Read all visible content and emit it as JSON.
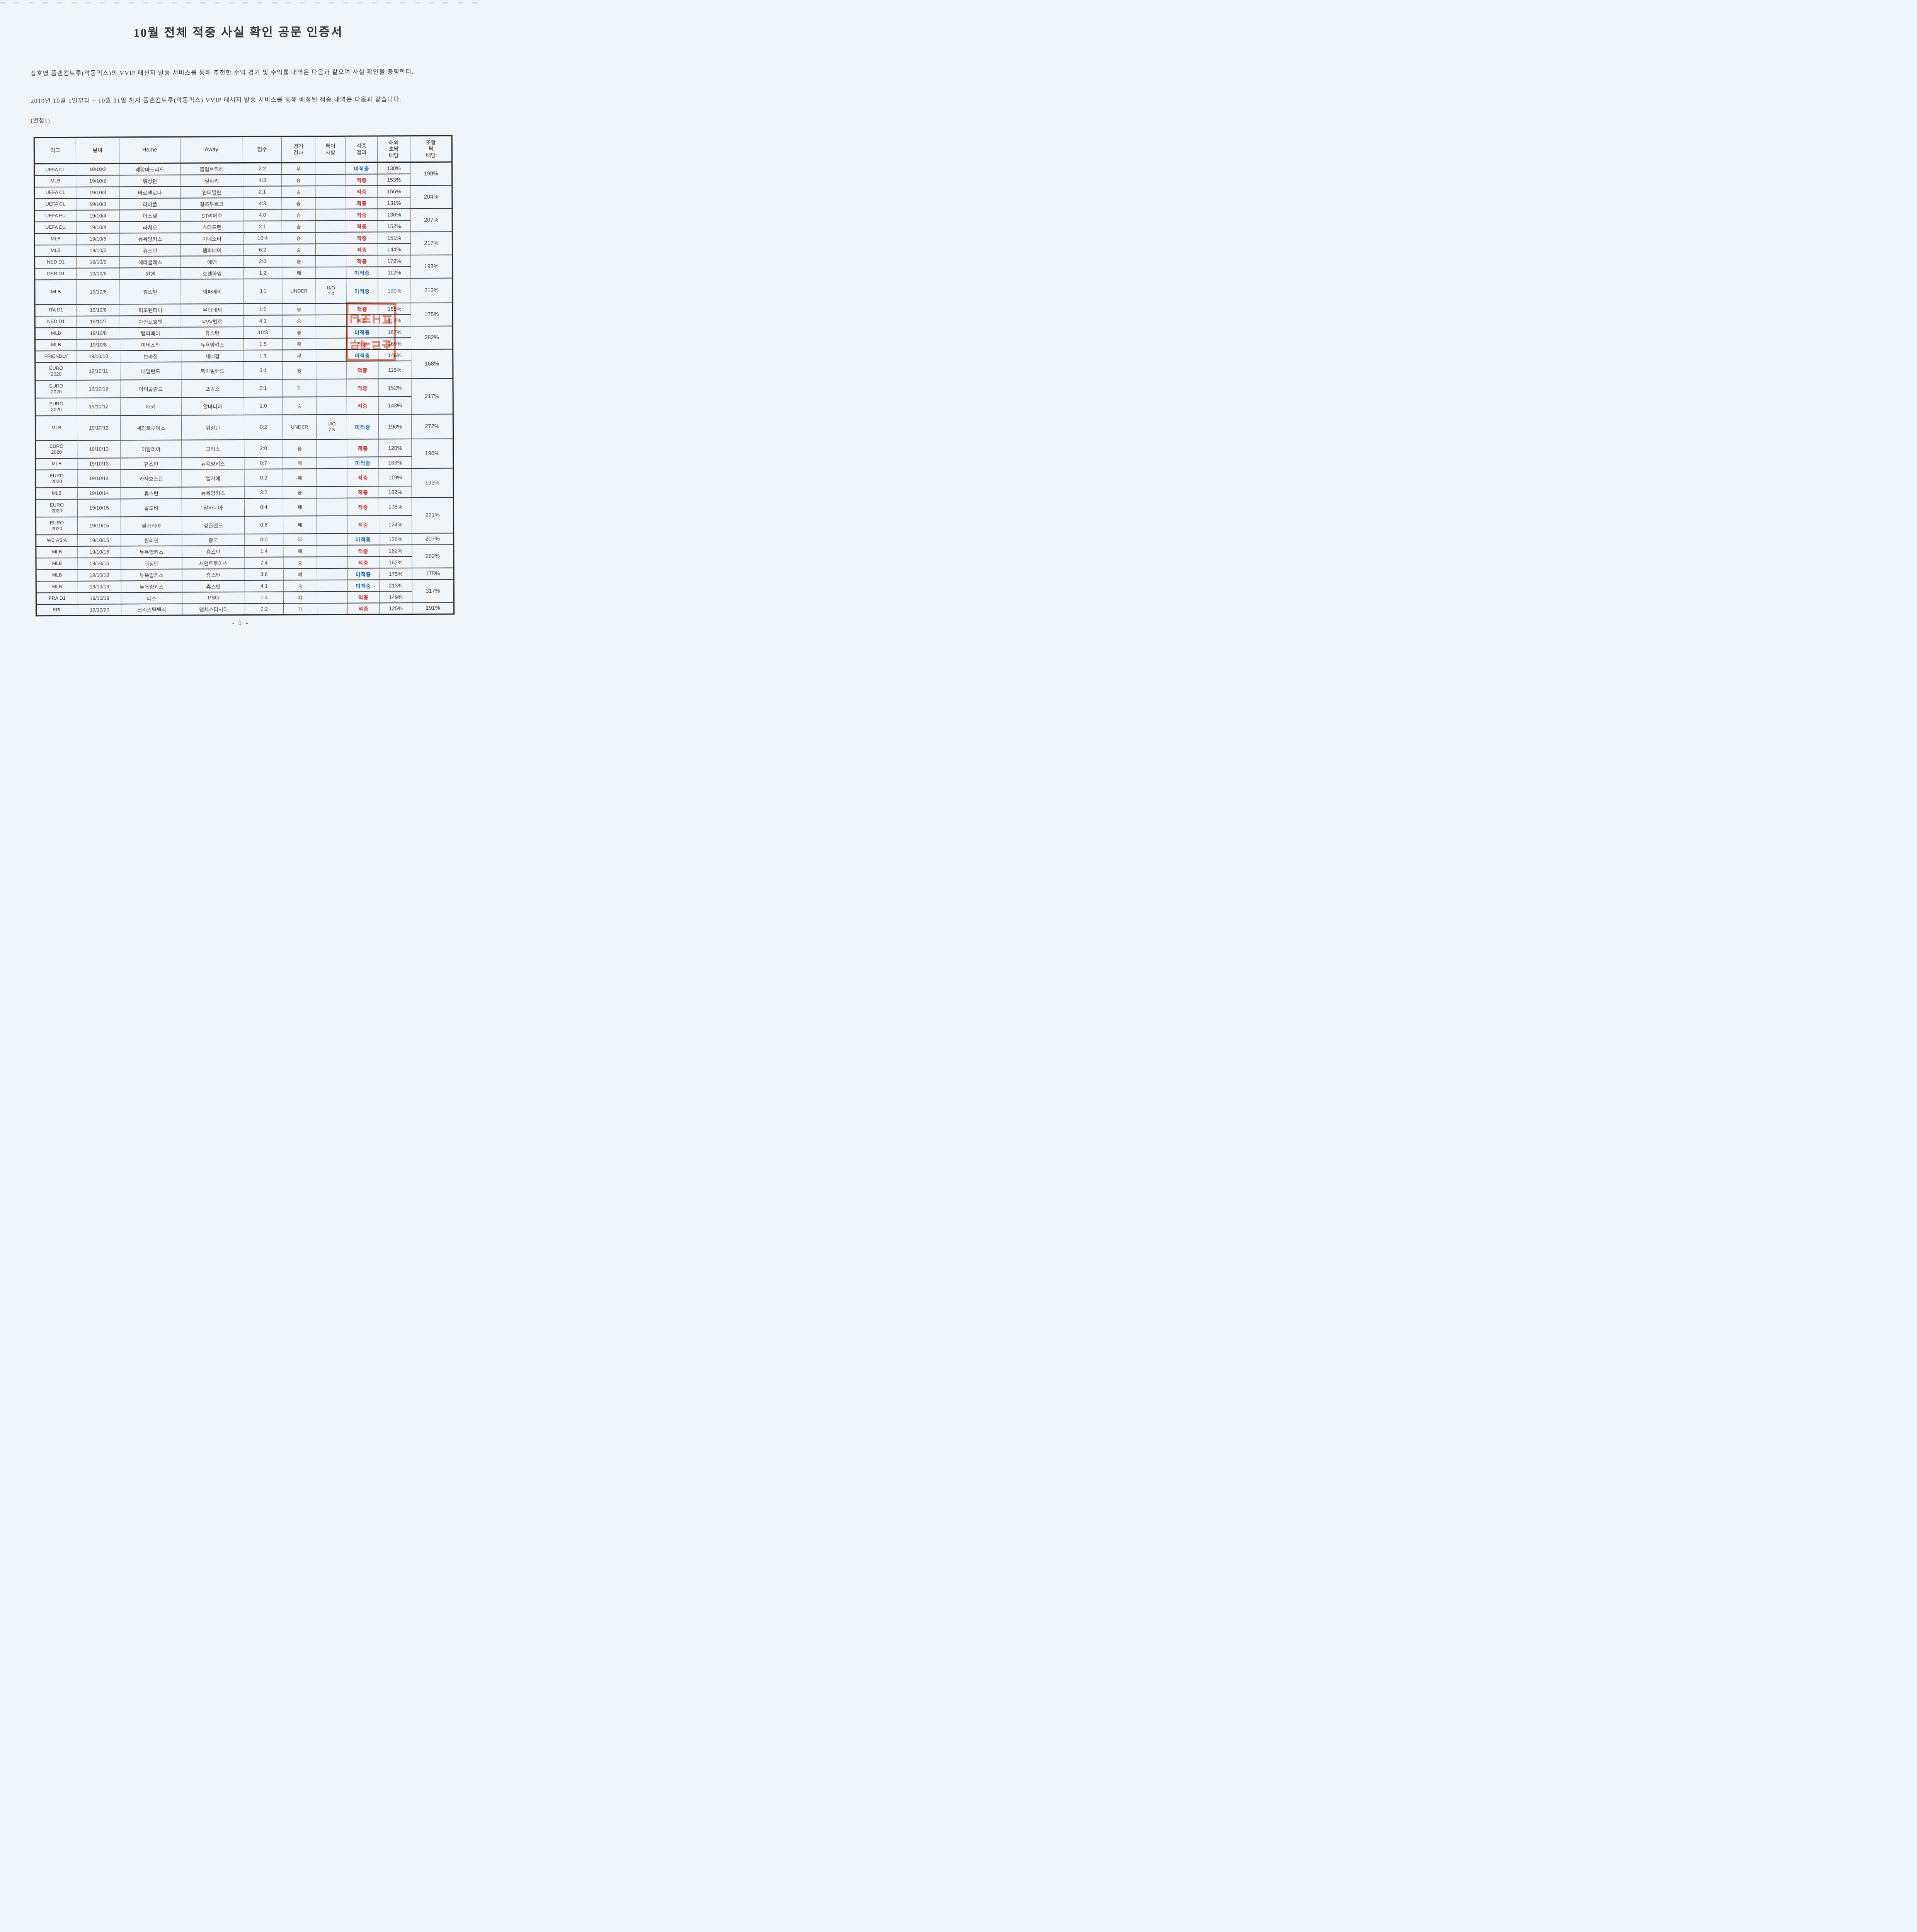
{
  "title": "10월 전체 적중 사실 확인 공문 인증서",
  "paragraphs": {
    "intro": "상호명 플랜컴트루(악동픽스)의 VVIP 메신저 발송 서비스를 통해 추천한 수익 경기 및 수익률 내역은 다음과 같으며 사실 확인을 증명한다.",
    "period": "2019년 10월 1일부터 ~ 10월 31일 까지 플랜컴트루(악동픽스) VVIP 메시지 발송 서비스를 통해 배정된 적중 내역은 다음과 같습니다."
  },
  "attachment_label": "(별첨1)",
  "table": {
    "headers": [
      "리그",
      "날짜",
      "Home",
      "Away",
      "점수",
      "경기\n결과",
      "특이\n사항",
      "적중\n결과",
      "해외\n초당\n배당",
      "조합\n픽\n배당"
    ],
    "rows": [
      {
        "league": "UEFA CL",
        "date": "19/10/2",
        "home": "레알마드리드",
        "away": "클럽브뤼헤",
        "score": "2:2",
        "result": "무",
        "special": "",
        "hit": "미적중",
        "hit_type": "miss",
        "odds": "130%",
        "size": "std"
      },
      {
        "league": "MLB",
        "date": "19/10/2",
        "home": "워싱턴",
        "away": "밀워키",
        "score": "4:3",
        "result": "승",
        "special": "",
        "hit": "적중",
        "hit_type": "hit",
        "odds": "153%",
        "size": "std"
      },
      {
        "league": "UEFA CL",
        "date": "19/10/3",
        "home": "바르셀로나",
        "away": "인터밀란",
        "score": "2:1",
        "result": "승",
        "special": "",
        "hit": "적중",
        "hit_type": "hit",
        "odds": "156%",
        "size": "std"
      },
      {
        "league": "UEFA CL",
        "date": "19/10/3",
        "home": "리버풀",
        "away": "잘츠부르크",
        "score": "4:3",
        "result": "승",
        "special": "",
        "hit": "적중",
        "hit_type": "hit",
        "odds": "131%",
        "size": "std"
      },
      {
        "league": "UEFA EU",
        "date": "19/10/4",
        "home": "아스널",
        "away": "ST리에주",
        "score": "4:0",
        "result": "승",
        "special": "",
        "hit": "적중",
        "hit_type": "hit",
        "odds": "136%",
        "size": "std"
      },
      {
        "league": "UEFA EU",
        "date": "19/10/4",
        "home": "라치오",
        "away": "스타드렌",
        "score": "2:1",
        "result": "승",
        "special": "",
        "hit": "적중",
        "hit_type": "hit",
        "odds": "152%",
        "size": "std"
      },
      {
        "league": "MLB",
        "date": "19/10/5",
        "home": "뉴욕양키스",
        "away": "미네소타",
        "score": "10:4",
        "result": "승",
        "special": "",
        "hit": "적중",
        "hit_type": "hit",
        "odds": "151%",
        "size": "std"
      },
      {
        "league": "MLB",
        "date": "19/10/5",
        "home": "휴스턴",
        "away": "탬파베이",
        "score": "6:2",
        "result": "승",
        "special": "",
        "hit": "적중",
        "hit_type": "hit",
        "odds": "144%",
        "size": "std"
      },
      {
        "league": "NED D1",
        "date": "19/10/6",
        "home": "헤라클레스",
        "away": "에멘",
        "score": "2:0",
        "result": "승",
        "special": "",
        "hit": "적중",
        "hit_type": "hit",
        "odds": "172%",
        "size": "std"
      },
      {
        "league": "GER D1",
        "date": "19/10/6",
        "home": "뮌헨",
        "away": "호펜하임",
        "score": "1:2",
        "result": "패",
        "special": "",
        "hit": "미적중",
        "hit_type": "miss",
        "odds": "112%",
        "size": "std"
      },
      {
        "league": "MLB",
        "date": "19/10/6",
        "home": "휴스턴",
        "away": "템파베이",
        "score": "3:1",
        "result": "UNDER",
        "special": "U/O\n7.0",
        "hit": "미적중",
        "hit_type": "miss",
        "odds": "190%",
        "size": "under"
      },
      {
        "league": "ITA D1",
        "date": "19/10/6",
        "home": "피오렌티나",
        "away": "우디네세",
        "score": "1:0",
        "result": "승",
        "special": "",
        "hit": "적중",
        "hit_type": "hit",
        "odds": "155%",
        "size": "std"
      },
      {
        "league": "NED D1",
        "date": "19/10/7",
        "home": "아인트호벤",
        "away": "VVV펜로",
        "score": "4:1",
        "result": "승",
        "special": "",
        "hit": "적중",
        "hit_type": "hit",
        "odds": "113%",
        "size": "std"
      },
      {
        "league": "MLB",
        "date": "19/10/8",
        "home": "탬파베이",
        "away": "휴스턴",
        "score": "10:3",
        "result": "승",
        "special": "",
        "hit": "미적중",
        "hit_type": "miss",
        "odds": "167%",
        "size": "std"
      },
      {
        "league": "MLB",
        "date": "19/10/8",
        "home": "미네소타",
        "away": "뉴욕양키스",
        "score": "1:5",
        "result": "패",
        "special": "",
        "hit": "적중",
        "hit_type": "hit",
        "odds": "169%",
        "size": "std"
      },
      {
        "league": "FRIENDLY",
        "date": "19/10/10",
        "home": "브라질",
        "away": "세네갈",
        "score": "1:1",
        "result": "무",
        "special": "",
        "hit": "미적중",
        "hit_type": "miss",
        "odds": "146%",
        "size": "std"
      },
      {
        "league": "EURO\n2020",
        "date": "19/10/11",
        "home": "네덜란드",
        "away": "북아일랜드",
        "score": "3:1",
        "result": "승",
        "special": "",
        "hit": "적중",
        "hit_type": "hit",
        "odds": "115%",
        "size": "euro"
      },
      {
        "league": "EURO\n2020",
        "date": "19/10/12",
        "home": "아이슬란드",
        "away": "프랑스",
        "score": "0:1",
        "result": "패",
        "special": "",
        "hit": "적중",
        "hit_type": "hit",
        "odds": "152%",
        "size": "euro"
      },
      {
        "league": "EURO\n2020",
        "date": "19/10/12",
        "home": "터키",
        "away": "알바니아",
        "score": "1:0",
        "result": "승",
        "special": "",
        "hit": "적중",
        "hit_type": "hit",
        "odds": "143%",
        "size": "euro"
      },
      {
        "league": "MLB",
        "date": "19/10/12",
        "home": "세인트루이스",
        "away": "워싱턴",
        "score": "0:2",
        "result": "UNDER",
        "special": "U/O\n7.5",
        "hit": "미적중",
        "hit_type": "miss",
        "odds": "190%",
        "size": "under"
      },
      {
        "league": "EURO\n2020",
        "date": "19/10/13",
        "home": "이탈리아",
        "away": "그리스",
        "score": "2:0",
        "result": "승",
        "special": "",
        "hit": "적중",
        "hit_type": "hit",
        "odds": "120%",
        "size": "euro"
      },
      {
        "league": "MLB",
        "date": "19/10/13",
        "home": "휴스턴",
        "away": "뉴욕양키스",
        "score": "0:7",
        "result": "패",
        "special": "",
        "hit": "미적중",
        "hit_type": "miss",
        "odds": "163%",
        "size": "std"
      },
      {
        "league": "EURO\n2020",
        "date": "19/10/14",
        "home": "카자흐스탄",
        "away": "벨기에",
        "score": "0:2",
        "result": "패",
        "special": "",
        "hit": "적중",
        "hit_type": "hit",
        "odds": "119%",
        "size": "euro"
      },
      {
        "league": "MLB",
        "date": "19/10/14",
        "home": "휴스턴",
        "away": "뉴욕양키스",
        "score": "3:2",
        "result": "승",
        "special": "",
        "hit": "적중",
        "hit_type": "hit",
        "odds": "162%",
        "size": "std"
      },
      {
        "league": "EURO\n2020",
        "date": "19/10/15",
        "home": "몰도바",
        "away": "알바니아",
        "score": "0:4",
        "result": "패",
        "special": "",
        "hit": "적중",
        "hit_type": "hit",
        "odds": "178%",
        "size": "euro"
      },
      {
        "league": "EURO\n2020",
        "date": "19/10/15",
        "home": "불가리아",
        "away": "잉글랜드",
        "score": "0:6",
        "result": "패",
        "special": "",
        "hit": "적중",
        "hit_type": "hit",
        "odds": "124%",
        "size": "euro"
      },
      {
        "league": "WC ASIA",
        "date": "19/10/15",
        "home": "필리핀",
        "away": "중국",
        "score": "0:0",
        "result": "무",
        "special": "",
        "hit": "미적중",
        "hit_type": "miss",
        "odds": "128%",
        "size": "std"
      },
      {
        "league": "MLB",
        "date": "19/10/16",
        "home": "뉴욕양키스",
        "away": "휴스턴",
        "score": "1:4",
        "result": "패",
        "special": "",
        "hit": "적중",
        "hit_type": "hit",
        "odds": "162%",
        "size": "std"
      },
      {
        "league": "MLB",
        "date": "19/10/16",
        "home": "워싱턴",
        "away": "세인트루이스",
        "score": "7:4",
        "result": "승",
        "special": "",
        "hit": "적중",
        "hit_type": "hit",
        "odds": "162%",
        "size": "std"
      },
      {
        "league": "MLB",
        "date": "19/10/18",
        "home": "뉴욕양키스",
        "away": "휴스턴",
        "score": "3:8",
        "result": "패",
        "special": "",
        "hit": "미적중",
        "hit_type": "miss",
        "odds": "175%",
        "size": "std"
      },
      {
        "league": "MLB",
        "date": "19/10/19",
        "home": "뉴욕양키스",
        "away": "휴스턴",
        "score": "4:1",
        "result": "승",
        "special": "",
        "hit": "미적중",
        "hit_type": "miss",
        "odds": "213%",
        "size": "std"
      },
      {
        "league": "FRA D1",
        "date": "19/10/19",
        "home": "니스",
        "away": "PSG",
        "score": "1:4",
        "result": "패",
        "special": "",
        "hit": "적중",
        "hit_type": "hit",
        "odds": "149%",
        "size": "std"
      },
      {
        "league": "EPL",
        "date": "19/10/20",
        "home": "크리스탈팰리",
        "away": "맨체스터시티",
        "score": "0:2",
        "result": "패",
        "special": "",
        "hit": "적중",
        "hit_type": "hit",
        "odds": "125%",
        "size": "std"
      }
    ],
    "combo_groups": [
      {
        "row": 0,
        "span": 2,
        "value": "199%"
      },
      {
        "row": 2,
        "span": 2,
        "value": "204%"
      },
      {
        "row": 4,
        "span": 2,
        "value": "207%"
      },
      {
        "row": 6,
        "span": 2,
        "value": "217%"
      },
      {
        "row": 8,
        "span": 2,
        "value": "193%"
      },
      {
        "row": 10,
        "span": 1,
        "value": "213%"
      },
      {
        "row": 11,
        "span": 2,
        "value": "175%"
      },
      {
        "row": 13,
        "span": 2,
        "value": "282%"
      },
      {
        "row": 15,
        "span": 2,
        "value": "168%"
      },
      {
        "row": 17,
        "span": 2,
        "value": "217%"
      },
      {
        "row": 19,
        "span": 1,
        "value": "272%"
      },
      {
        "row": 20,
        "span": 2,
        "value": "196%"
      },
      {
        "row": 22,
        "span": 2,
        "value": "193%"
      },
      {
        "row": 24,
        "span": 2,
        "value": "221%"
      },
      {
        "row": 26,
        "span": 1,
        "value": "207%"
      },
      {
        "row": 27,
        "span": 2,
        "value": "262%"
      },
      {
        "row": 29,
        "span": 1,
        "value": "175%"
      },
      {
        "row": 30,
        "span": 2,
        "value": "317%"
      },
      {
        "row": 32,
        "span": 1,
        "value": "191%"
      }
    ]
  },
  "stamp": {
    "type": "red-seal",
    "legible": false,
    "color": "#dd5f43"
  },
  "colors": {
    "hit_text": "#c8332c",
    "miss_text": "#2064bd",
    "page_background": "#eff5f8",
    "ink": "#383d44",
    "stamp": "#dd5f43"
  },
  "page": {
    "number_label": "- 1 -"
  }
}
